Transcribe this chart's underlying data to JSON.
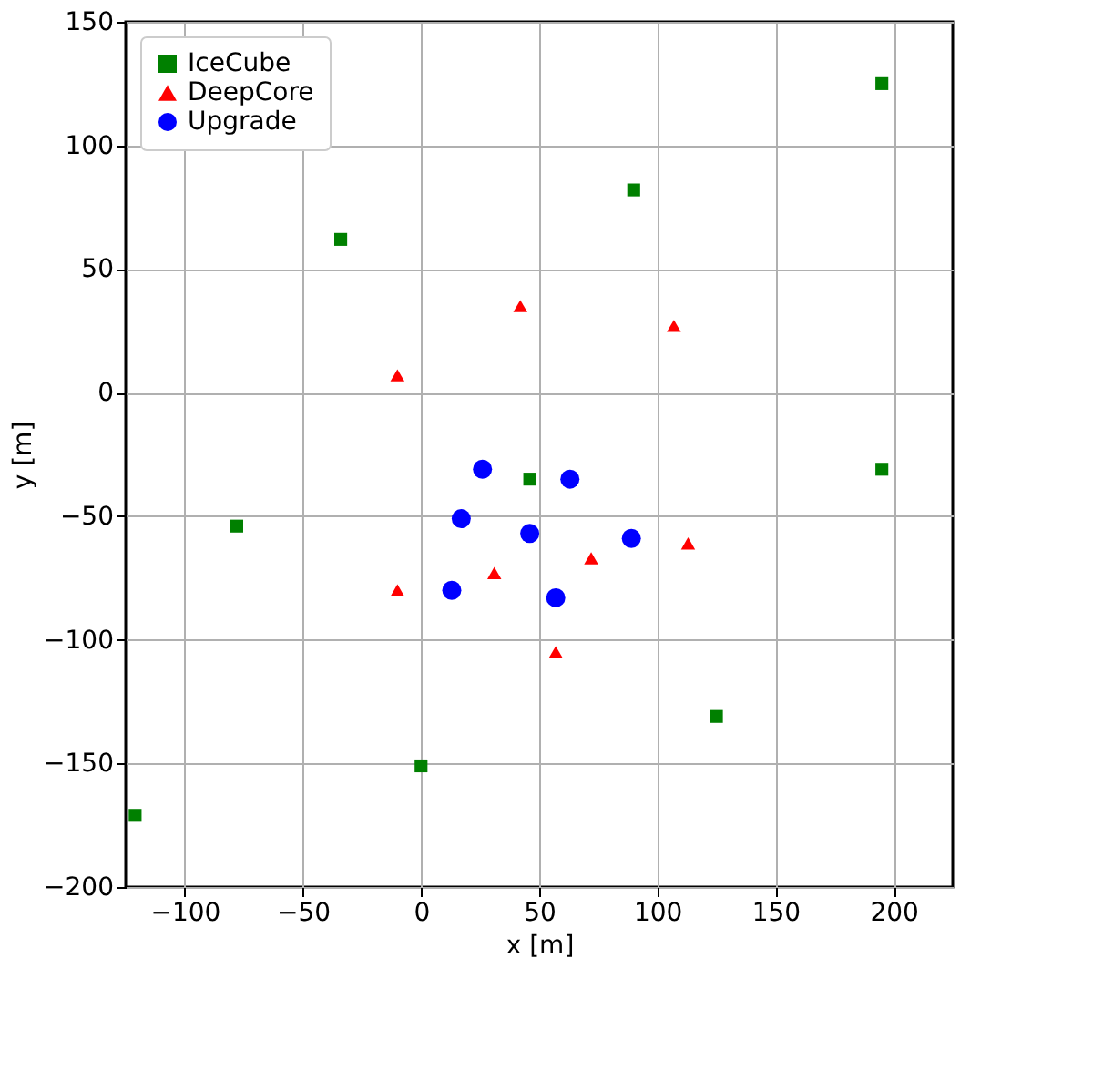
{
  "chart_data": {
    "type": "scatter",
    "xlabel": "x [m]",
    "ylabel": "y [m]",
    "xlim": [
      -125,
      225
    ],
    "ylim": [
      -200,
      150
    ],
    "xticks": [
      -100,
      -50,
      0,
      50,
      100,
      150,
      200
    ],
    "yticks": [
      -200,
      -150,
      -100,
      -50,
      0,
      50,
      100,
      150
    ],
    "grid": true,
    "legend": "top left",
    "series": [
      {
        "name": "IceCube",
        "color": "#008000",
        "marker": "square",
        "x": [
          195,
          90,
          -34,
          46,
          -78,
          195,
          125,
          0,
          -121
        ],
        "values": [
          125,
          82,
          62,
          -35,
          -54,
          -31,
          -131,
          -151,
          -171
        ]
      },
      {
        "name": "DeepCore",
        "color": "#ff0000",
        "marker": "triangle",
        "x": [
          -10,
          42,
          107,
          -10,
          31,
          72,
          113,
          57
        ],
        "values": [
          7,
          35,
          27,
          -80,
          -73,
          -67,
          -61,
          -105
        ]
      },
      {
        "name": "Upgrade",
        "color": "#0000ff",
        "marker": "circle",
        "x": [
          26,
          63,
          17,
          46,
          89,
          13,
          57
        ],
        "values": [
          -31,
          -35,
          -51,
          -57,
          -59,
          -80,
          -83
        ]
      }
    ]
  }
}
